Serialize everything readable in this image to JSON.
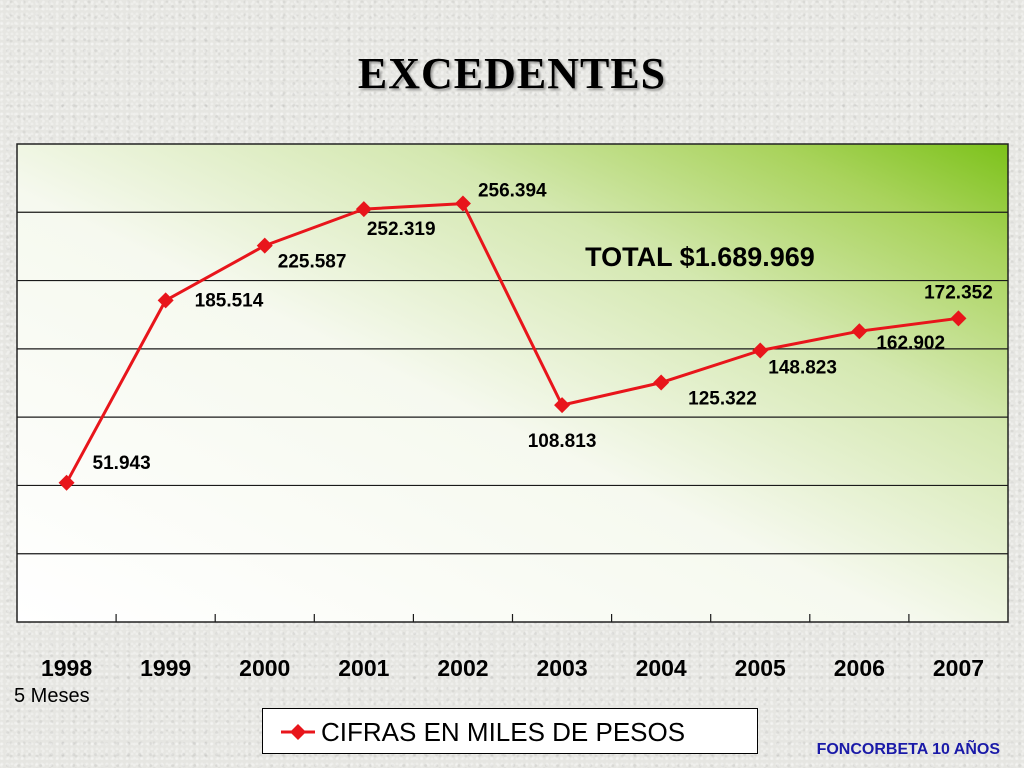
{
  "title": "EXCEDENTES",
  "chart_data": {
    "type": "line",
    "title": "EXCEDENTES",
    "categories": [
      "1998",
      "1999",
      "2000",
      "2001",
      "2002",
      "2003",
      "2004",
      "2005",
      "2006",
      "2007"
    ],
    "series": [
      {
        "name": "CIFRAS EN MILES DE PESOS",
        "values": [
          51943,
          185514,
          225587,
          252319,
          256394,
          108813,
          125322,
          148823,
          162902,
          172352
        ],
        "data_labels": [
          "51.943",
          "185.514",
          "225.587",
          "252.319",
          "256.394",
          "108.813",
          "125.322",
          "148.823",
          "162.902",
          "172.352"
        ],
        "color": "#e8151b"
      }
    ],
    "ylim": [
      -50000,
      300000
    ],
    "grid": true,
    "legend_position": "bottom",
    "annotation": "TOTAL $1.689.969",
    "note": "5 Meses"
  },
  "footer": "FONCORBETA 10 AÑOS",
  "colors": {
    "line": "#e8151b",
    "footer": "#1a1aa8",
    "plot_gradient_end": "#8cc81e"
  }
}
